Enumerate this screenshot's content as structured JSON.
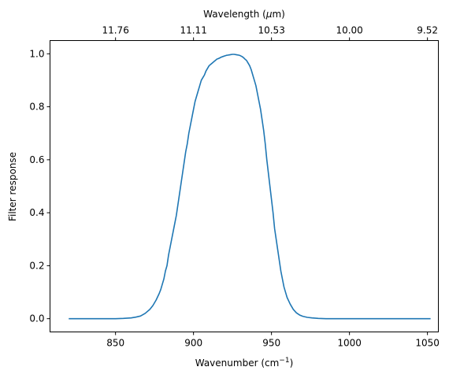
{
  "chart_data": {
    "type": "line",
    "title": "",
    "xlabel": "Wavenumber (cm",
    "xlabel_superscript": "−1",
    "xlabel_suffix": ")",
    "ylabel": "Filter response",
    "top_xlabel": "Wavelength (",
    "top_xlabel_symbol": "μ",
    "top_xlabel_suffix": "m)",
    "xlim": [
      808,
      1057
    ],
    "ylim": [
      -0.05,
      1.05
    ],
    "grid": false,
    "legend": "none",
    "xticks": [
      {
        "value": 850,
        "label": "850"
      },
      {
        "value": 900,
        "label": "900"
      },
      {
        "value": 950,
        "label": "950"
      },
      {
        "value": 1000,
        "label": "1000"
      },
      {
        "value": 1050,
        "label": "1050"
      }
    ],
    "yticks": [
      {
        "value": 0.0,
        "label": "0.0"
      },
      {
        "value": 0.2,
        "label": "0.2"
      },
      {
        "value": 0.4,
        "label": "0.4"
      },
      {
        "value": 0.6,
        "label": "0.6"
      },
      {
        "value": 0.8,
        "label": "0.8"
      },
      {
        "value": 1.0,
        "label": "1.0"
      }
    ],
    "top_xticks": [
      {
        "value": 850,
        "label": "11.76"
      },
      {
        "value": 900,
        "label": "11.11"
      },
      {
        "value": 950,
        "label": "10.53"
      },
      {
        "value": 1000,
        "label": "10.00"
      },
      {
        "value": 1050,
        "label": "9.52"
      }
    ],
    "series": [
      {
        "color": "#1f77b4",
        "x": [
          820,
          830,
          840,
          850,
          855,
          860,
          863,
          866,
          869,
          872,
          874,
          876,
          878,
          879,
          880,
          881,
          882,
          883,
          884,
          885,
          886,
          887,
          888,
          889,
          890,
          891,
          892,
          893,
          894,
          895,
          896,
          897,
          898,
          899,
          900,
          901,
          902,
          903,
          904,
          905,
          906,
          907,
          908,
          909,
          910,
          911,
          912,
          913,
          914,
          915,
          916,
          917,
          918,
          919,
          920,
          921,
          922,
          923,
          924,
          925,
          926,
          927,
          928,
          929,
          930,
          931,
          932,
          933,
          934,
          935,
          936,
          937,
          938,
          939,
          940,
          941,
          942,
          943,
          944,
          945,
          946,
          947,
          948,
          949,
          950,
          951,
          952,
          953,
          954,
          955,
          956,
          957,
          958,
          959,
          960,
          962,
          964,
          966,
          968,
          970,
          973,
          976,
          980,
          985,
          990,
          1000,
          1010,
          1020,
          1030,
          1040,
          1052
        ],
        "y": [
          0.0,
          0.0,
          0.0,
          0.0,
          0.001,
          0.003,
          0.006,
          0.01,
          0.02,
          0.035,
          0.05,
          0.07,
          0.095,
          0.11,
          0.13,
          0.15,
          0.18,
          0.2,
          0.24,
          0.27,
          0.3,
          0.33,
          0.36,
          0.39,
          0.43,
          0.47,
          0.51,
          0.55,
          0.59,
          0.63,
          0.66,
          0.7,
          0.73,
          0.76,
          0.79,
          0.82,
          0.84,
          0.86,
          0.88,
          0.9,
          0.91,
          0.92,
          0.935,
          0.945,
          0.955,
          0.96,
          0.965,
          0.97,
          0.975,
          0.98,
          0.982,
          0.985,
          0.988,
          0.99,
          0.992,
          0.994,
          0.995,
          0.996,
          0.997,
          0.998,
          0.998,
          0.997,
          0.996,
          0.995,
          0.993,
          0.99,
          0.986,
          0.98,
          0.975,
          0.965,
          0.955,
          0.94,
          0.92,
          0.9,
          0.88,
          0.85,
          0.82,
          0.79,
          0.75,
          0.71,
          0.66,
          0.6,
          0.55,
          0.5,
          0.45,
          0.4,
          0.34,
          0.3,
          0.26,
          0.22,
          0.18,
          0.15,
          0.12,
          0.1,
          0.08,
          0.055,
          0.035,
          0.022,
          0.014,
          0.009,
          0.005,
          0.003,
          0.001,
          0.0,
          0.0,
          0.0,
          0.0,
          0.0,
          0.0,
          0.0,
          0.0
        ]
      }
    ]
  }
}
